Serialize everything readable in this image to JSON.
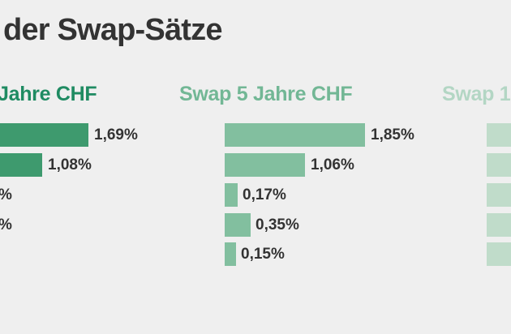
{
  "page": {
    "title": "der Swap-Sätze",
    "background_color": "#efefef",
    "title_color": "#333333",
    "value_label_color": "#333333"
  },
  "chart_data": {
    "type": "bar",
    "orientation": "horizontal",
    "unit": "percent",
    "decimal_separator": "comma",
    "legend_position": "none",
    "grid": false,
    "columns": [
      {
        "header": "Jahre CHF",
        "header_color": "#1f8b62",
        "bar_color": "#3e9a6e",
        "clipped": "left",
        "rows": [
          {
            "label": "1,69%",
            "value": 1.69
          },
          {
            "label": "1,08%",
            "value": 1.08
          },
          {
            "label": "%",
            "value": null
          },
          {
            "label": "%",
            "value": null
          }
        ]
      },
      {
        "header": "Swap 5 Jahre CHF",
        "header_color": "#72b795",
        "bar_color": "#82bf9f",
        "clipped": "none",
        "rows": [
          {
            "label": "1,85%",
            "value": 1.85
          },
          {
            "label": "1,06%",
            "value": 1.06
          },
          {
            "label": "0,17%",
            "value": 0.17
          },
          {
            "label": "0,35%",
            "value": 0.35
          },
          {
            "label": "0,15%",
            "value": 0.15
          }
        ]
      },
      {
        "header": "Swap 1",
        "header_color": "#b3d6c4",
        "bar_color": "#c0dcca",
        "clipped": "right",
        "rows": [
          {
            "label": "",
            "value": null
          },
          {
            "label": "",
            "value": null
          },
          {
            "label": "",
            "value": null
          },
          {
            "label": "",
            "value": null
          },
          {
            "label": "",
            "value": null
          }
        ]
      }
    ]
  }
}
